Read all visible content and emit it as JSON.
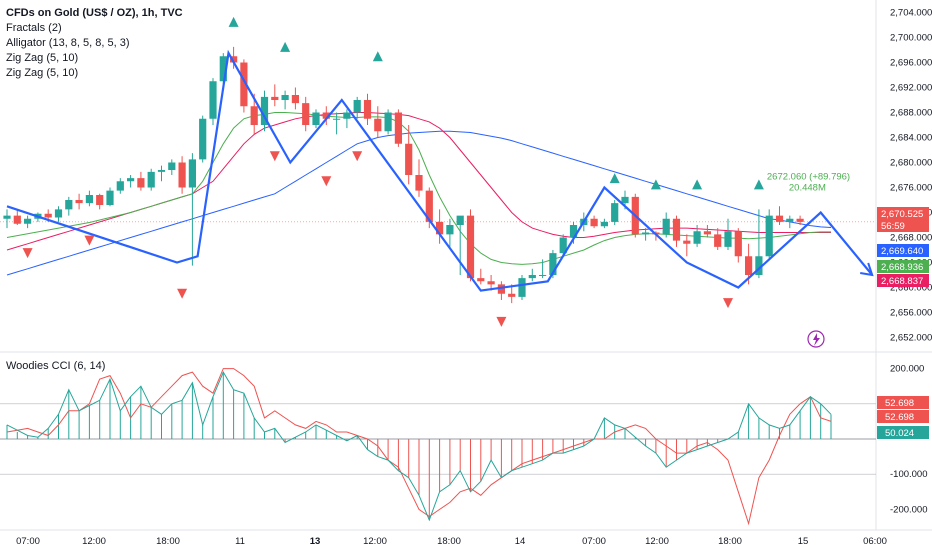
{
  "legend": {
    "title": "CFDs on Gold (US$ / OZ), 1h, TVC",
    "fractals": "Fractals (2)",
    "alligator": "Alligator (13, 8, 5, 8, 5, 3)",
    "zigzag1": "Zig Zag (5, 10)",
    "zigzag2": "Zig Zag (5, 10)",
    "cci": "Woodies CCI (6, 14)"
  },
  "annotation": {
    "line1": "2672.060 (+89.796)",
    "line2": "20.448M"
  },
  "colors": {
    "up": "#26a69a",
    "down": "#ef5350",
    "zigzag": "#2962ff",
    "jaw": "#2962ff",
    "teeth": "#e91e63",
    "lips": "#4caf50",
    "cci_line": "#26a69a",
    "tci_line": "#ef5350"
  },
  "chart_data": [
    {
      "type": "candlestick",
      "ylim": [
        2650,
        2706
      ],
      "y_ticks": [
        "2,704.000",
        "2,700.000",
        "2,696.000",
        "2,692.000",
        "2,688.000",
        "2,684.000",
        "2,680.000",
        "2,676.000",
        "2,672.000",
        "2,668.000",
        "2,664.000",
        "2,660.000",
        "2,656.000",
        "2,652.000"
      ],
      "x_ticks": [
        "07:00",
        "12:00",
        "18:00",
        "11",
        "13",
        "12:00",
        "18:00",
        "14",
        "07:00",
        "12:00",
        "18:00",
        "15",
        "06:00"
      ],
      "price_labels": [
        {
          "text": "2,670.525",
          "color": "#ef5350"
        },
        {
          "text": "56:59",
          "color": "#ef5350"
        },
        {
          "text": "2,669.640",
          "color": "#2962ff"
        },
        {
          "text": "2,668.936",
          "color": "#4caf50"
        },
        {
          "text": "2,668.837",
          "color": "#e91e63"
        }
      ],
      "candles": [
        [
          2671.0,
          2672.5,
          2669.5,
          2671.5
        ],
        [
          2671.5,
          2672.5,
          2670.0,
          2670.2
        ],
        [
          2670.2,
          2671.5,
          2669.5,
          2671.0
        ],
        [
          2671.0,
          2672.0,
          2670.5,
          2671.8
        ],
        [
          2671.8,
          2672.5,
          2670.5,
          2671.2
        ],
        [
          2671.2,
          2673.0,
          2670.5,
          2672.5
        ],
        [
          2672.5,
          2674.5,
          2671.5,
          2674.0
        ],
        [
          2674.0,
          2675.0,
          2672.5,
          2673.5
        ],
        [
          2673.5,
          2675.5,
          2673.0,
          2674.8
        ],
        [
          2674.8,
          2675.0,
          2672.5,
          2673.2
        ],
        [
          2673.2,
          2676.0,
          2673.0,
          2675.5
        ],
        [
          2675.5,
          2677.5,
          2675.0,
          2677.0
        ],
        [
          2677.0,
          2678.0,
          2676.0,
          2677.5
        ],
        [
          2677.5,
          2678.5,
          2675.5,
          2676.0
        ],
        [
          2676.0,
          2679.0,
          2675.5,
          2678.5
        ],
        [
          2678.5,
          2679.5,
          2677.0,
          2678.8
        ],
        [
          2678.8,
          2680.5,
          2678.0,
          2680.0
        ],
        [
          2680.0,
          2681.0,
          2675.0,
          2676.0
        ],
        [
          2676.0,
          2681.5,
          2663.5,
          2680.5
        ],
        [
          2680.5,
          2687.5,
          2680.0,
          2687.0
        ],
        [
          2687.0,
          2693.5,
          2686.0,
          2693.0
        ],
        [
          2693.0,
          2697.5,
          2692.5,
          2697.0
        ],
        [
          2697.0,
          2698.5,
          2695.0,
          2696.0
        ],
        [
          2696.0,
          2696.5,
          2688.0,
          2689.0
        ],
        [
          2689.0,
          2691.0,
          2684.5,
          2686.0
        ],
        [
          2686.0,
          2691.5,
          2685.0,
          2690.5
        ],
        [
          2690.5,
          2692.5,
          2689.0,
          2690.0
        ],
        [
          2690.0,
          2691.5,
          2688.5,
          2690.8
        ],
        [
          2690.8,
          2692.0,
          2688.5,
          2689.5
        ],
        [
          2689.5,
          2690.5,
          2685.0,
          2686.0
        ],
        [
          2686.0,
          2688.5,
          2685.5,
          2688.0
        ],
        [
          2688.0,
          2689.0,
          2686.0,
          2687.0
        ],
        [
          2687.0,
          2688.0,
          2684.5,
          2687.0
        ],
        [
          2687.0,
          2688.5,
          2685.5,
          2688.0
        ],
        [
          2688.0,
          2690.5,
          2687.0,
          2690.0
        ],
        [
          2690.0,
          2691.0,
          2686.0,
          2687.0
        ],
        [
          2687.0,
          2689.0,
          2684.0,
          2685.0
        ],
        [
          2685.0,
          2688.5,
          2684.5,
          2688.0
        ],
        [
          2688.0,
          2688.5,
          2682.5,
          2683.0
        ],
        [
          2683.0,
          2686.0,
          2676.5,
          2678.0
        ],
        [
          2678.0,
          2680.5,
          2674.5,
          2675.5
        ],
        [
          2675.5,
          2676.0,
          2669.5,
          2670.5
        ],
        [
          2670.5,
          2672.5,
          2667.0,
          2668.5
        ],
        [
          2668.5,
          2671.0,
          2666.5,
          2670.0
        ],
        [
          2670.0,
          2671.0,
          2662.0,
          2671.5
        ],
        [
          2671.5,
          2672.5,
          2661.0,
          2661.5
        ],
        [
          2661.5,
          2663.0,
          2660.5,
          2661.0
        ],
        [
          2661.0,
          2662.0,
          2659.5,
          2660.5
        ],
        [
          2660.5,
          2661.0,
          2658.0,
          2659.0
        ],
        [
          2659.0,
          2660.5,
          2657.5,
          2658.5
        ],
        [
          2658.5,
          2662.0,
          2658.0,
          2661.5
        ],
        [
          2661.5,
          2663.0,
          2661.0,
          2662.0
        ],
        [
          2662.0,
          2664.5,
          2661.5,
          2662.0
        ],
        [
          2662.0,
          2666.0,
          2661.5,
          2665.5
        ],
        [
          2665.5,
          2668.5,
          2665.0,
          2668.0
        ],
        [
          2668.0,
          2670.5,
          2667.0,
          2670.0
        ],
        [
          2670.0,
          2672.0,
          2669.0,
          2671.0
        ],
        [
          2671.0,
          2671.5,
          2669.5,
          2669.8
        ],
        [
          2669.8,
          2671.0,
          2669.5,
          2670.5
        ],
        [
          2670.5,
          2674.0,
          2670.0,
          2673.5
        ],
        [
          2673.5,
          2675.5,
          2672.5,
          2674.5
        ],
        [
          2674.5,
          2675.0,
          2668.0,
          2668.5
        ],
        [
          2668.5,
          2669.5,
          2667.5,
          2668.8
        ],
        [
          2668.8,
          2669.0,
          2667.5,
          2668.5
        ],
        [
          2668.5,
          2672.0,
          2668.0,
          2671.0
        ],
        [
          2671.0,
          2671.5,
          2666.5,
          2667.5
        ],
        [
          2667.5,
          2668.5,
          2665.0,
          2667.0
        ],
        [
          2667.0,
          2670.0,
          2666.5,
          2669.0
        ],
        [
          2669.0,
          2670.0,
          2668.0,
          2668.5
        ],
        [
          2668.5,
          2669.5,
          2666.0,
          2666.5
        ],
        [
          2666.5,
          2671.0,
          2666.0,
          2669.0
        ],
        [
          2669.0,
          2669.5,
          2664.0,
          2665.0
        ],
        [
          2665.0,
          2667.0,
          2660.5,
          2662.0
        ],
        [
          2662.0,
          2672.5,
          2661.5,
          2665.0
        ],
        [
          2665.0,
          2672.5,
          2664.5,
          2671.5
        ],
        [
          2671.5,
          2673.0,
          2670.0,
          2670.5
        ],
        [
          2670.5,
          2671.5,
          2669.5,
          2671.0
        ],
        [
          2671.0,
          2671.5,
          2670.0,
          2670.5
        ]
      ],
      "zigzag": [
        [
          0,
          2673
        ],
        [
          16.5,
          2664
        ],
        [
          18.5,
          2665
        ],
        [
          21.5,
          2697.5
        ],
        [
          27.5,
          2680
        ],
        [
          32.5,
          2690
        ],
        [
          46.0,
          2659.5
        ],
        [
          52.5,
          2661
        ],
        [
          58,
          2676
        ],
        [
          66,
          2664
        ],
        [
          71,
          2660
        ],
        [
          79,
          2672
        ],
        [
          84,
          2662
        ]
      ],
      "fractals_up": [
        [
          22,
          2702.5
        ],
        [
          27,
          2698.5
        ],
        [
          36,
          2697
        ],
        [
          59,
          2677.5
        ],
        [
          63,
          2676.5
        ],
        [
          67,
          2676.5
        ],
        [
          73,
          2676.5
        ]
      ],
      "fractals_down": [
        [
          2,
          2665.5
        ],
        [
          8,
          2667.5
        ],
        [
          17,
          2659
        ],
        [
          26,
          2681
        ],
        [
          31,
          2677
        ],
        [
          34,
          2681
        ],
        [
          48,
          2654.5
        ],
        [
          70,
          2657.5
        ]
      ],
      "jaw": [
        2662,
        2662.5,
        2663,
        2663.5,
        2664,
        2664.5,
        2665,
        2665.5,
        2666,
        2666.5,
        2667,
        2667.5,
        2668,
        2668.5,
        2669,
        2669.5,
        2670,
        2670.5,
        2671,
        2671.5,
        2672,
        2672.5,
        2673,
        2673.5,
        2674,
        2674.5,
        2675,
        2676,
        2677,
        2678,
        2679,
        2680,
        2681,
        2682,
        2683,
        2683.5,
        2684,
        2684.3,
        2684.5,
        2684.7,
        2684.8,
        2684.9,
        2685,
        2685,
        2684.9,
        2684.8,
        2684.5,
        2684.2,
        2683.9,
        2683.5,
        2683,
        2682.5,
        2682,
        2681.5,
        2681,
        2680.5,
        2680,
        2679.5,
        2679,
        2678.5,
        2678,
        2677.5,
        2677,
        2676.5,
        2676,
        2675.5,
        2675,
        2674.5,
        2674,
        2673.5,
        2673,
        2672.5,
        2672,
        2671.5,
        2671,
        2670.8,
        2670.5,
        2670.2,
        2669.9,
        2669.7,
        2669.6
      ],
      "teeth": [
        2666,
        2666.5,
        2667,
        2667.5,
        2668,
        2668.5,
        2669,
        2669.5,
        2670,
        2670.5,
        2671,
        2671.5,
        2672,
        2672.5,
        2673,
        2673.5,
        2674,
        2674.5,
        2675,
        2676,
        2677,
        2679,
        2681,
        2683,
        2684.5,
        2685.5,
        2686,
        2686.5,
        2687,
        2687.3,
        2687.5,
        2687.7,
        2687.8,
        2687.9,
        2688,
        2688,
        2687.9,
        2687.8,
        2687.7,
        2687.5,
        2687,
        2686.5,
        2685.5,
        2684,
        2682,
        2680,
        2678,
        2676,
        2674,
        2672,
        2670.5,
        2669.5,
        2669,
        2668.5,
        2668.2,
        2668,
        2668,
        2668.2,
        2668.5,
        2668.8,
        2669,
        2669.2,
        2669.3,
        2669.4,
        2669.5,
        2669.5,
        2669.5,
        2669.4,
        2669.3,
        2669.2,
        2669.1,
        2669,
        2668.9,
        2668.8,
        2668.8,
        2668.8,
        2668.8,
        2668.8,
        2668.8,
        2668.8,
        2668.8
      ],
      "lips": [
        2668,
        2668.3,
        2668.6,
        2668.9,
        2669.2,
        2669.5,
        2669.8,
        2670.1,
        2670.4,
        2670.8,
        2671.2,
        2671.6,
        2672,
        2672.5,
        2673,
        2673.5,
        2674,
        2674.5,
        2675,
        2677,
        2680,
        2683,
        2685.5,
        2687,
        2687.5,
        2687.7,
        2688,
        2688,
        2687.9,
        2687.8,
        2687.6,
        2687.4,
        2687.3,
        2687.2,
        2687.2,
        2687.3,
        2687.3,
        2687.2,
        2686.5,
        2685,
        2682,
        2678,
        2674.5,
        2671.5,
        2669,
        2667,
        2665.5,
        2664.5,
        2664,
        2663.8,
        2663.7,
        2663.8,
        2664,
        2664.5,
        2665,
        2665.5,
        2666,
        2666.8,
        2667.5,
        2668,
        2668.3,
        2668.5,
        2668.6,
        2668.6,
        2668.5,
        2668.4,
        2668.3,
        2668.2,
        2668.1,
        2668,
        2667.9,
        2667.9,
        2667.8,
        2667.9,
        2668,
        2668.2,
        2668.4,
        2668.6,
        2668.8,
        2668.9,
        2668.9
      ],
      "annotation_at": [
        73,
        2676
      ]
    },
    {
      "type": "line",
      "title": "Woodies CCI (6, 14)",
      "ylim": [
        -230,
        230
      ],
      "y_ticks": [
        "200.000",
        "100.000",
        "-100.000",
        "-200.000"
      ],
      "value_labels": [
        {
          "text": "52.698",
          "color": "#ef5350"
        },
        {
          "text": "52.698",
          "color": "#ef5350"
        },
        {
          "text": "50.024",
          "color": "#26a69a"
        }
      ],
      "series": [
        {
          "name": "",
          "values": [
            40,
            25,
            10,
            5,
            30,
            70,
            140,
            80,
            95,
            110,
            170,
            80,
            120,
            150,
            90,
            70,
            100,
            110,
            160,
            40,
            120,
            190,
            140,
            130,
            60,
            20,
            30,
            -10,
            5,
            20,
            40,
            25,
            10,
            -5,
            10,
            -30,
            -50,
            -60,
            -90,
            -110,
            -160,
            -230,
            -150,
            -130,
            -90,
            -150,
            -120,
            -60,
            -110,
            -90,
            -80,
            -70,
            -60,
            -40,
            -40,
            -30,
            -20,
            0,
            60,
            40,
            30,
            5,
            -20,
            -40,
            -80,
            -60,
            -40,
            -30,
            -20,
            -10,
            0,
            20,
            100,
            60,
            40,
            30,
            40,
            80,
            120,
            100,
            70
          ]
        },
        {
          "name": "",
          "values": [
            20,
            25,
            30,
            20,
            10,
            40,
            80,
            80,
            100,
            170,
            180,
            130,
            60,
            100,
            90,
            120,
            150,
            180,
            190,
            150,
            130,
            200,
            200,
            180,
            150,
            60,
            80,
            60,
            40,
            30,
            50,
            40,
            20,
            20,
            10,
            0,
            -20,
            -60,
            -80,
            -140,
            -200,
            -220,
            -200,
            -180,
            -150,
            -140,
            -160,
            -130,
            -110,
            -90,
            -70,
            -60,
            -50,
            -40,
            -30,
            -20,
            -10,
            0,
            0,
            20,
            30,
            40,
            30,
            0,
            -20,
            -40,
            -40,
            -20,
            -10,
            -30,
            -60,
            -150,
            -240,
            -110,
            -60,
            10,
            70,
            100,
            120,
            60,
            50
          ]
        },
        {
          "name": "",
          "values": [
            40,
            20,
            10,
            5,
            30,
            70,
            140,
            80,
            95,
            110,
            170,
            80,
            120,
            150,
            90,
            70,
            100,
            110,
            160,
            40,
            120,
            190,
            140,
            130,
            60,
            20,
            30,
            -10,
            5,
            20,
            40,
            25,
            10,
            -5,
            10,
            -30,
            -50,
            -60,
            -90,
            -110,
            -160,
            -230,
            -150,
            -130,
            -90,
            -150,
            -120,
            -60,
            -110,
            -90,
            -80,
            -70,
            -60,
            -40,
            -40,
            -30,
            -20,
            0,
            60,
            40,
            30,
            5,
            -20,
            -40,
            -80,
            -60,
            -40,
            -30,
            -20,
            -10,
            0,
            20,
            100,
            60,
            40,
            30,
            40,
            80,
            120,
            100,
            70
          ]
        }
      ]
    }
  ]
}
